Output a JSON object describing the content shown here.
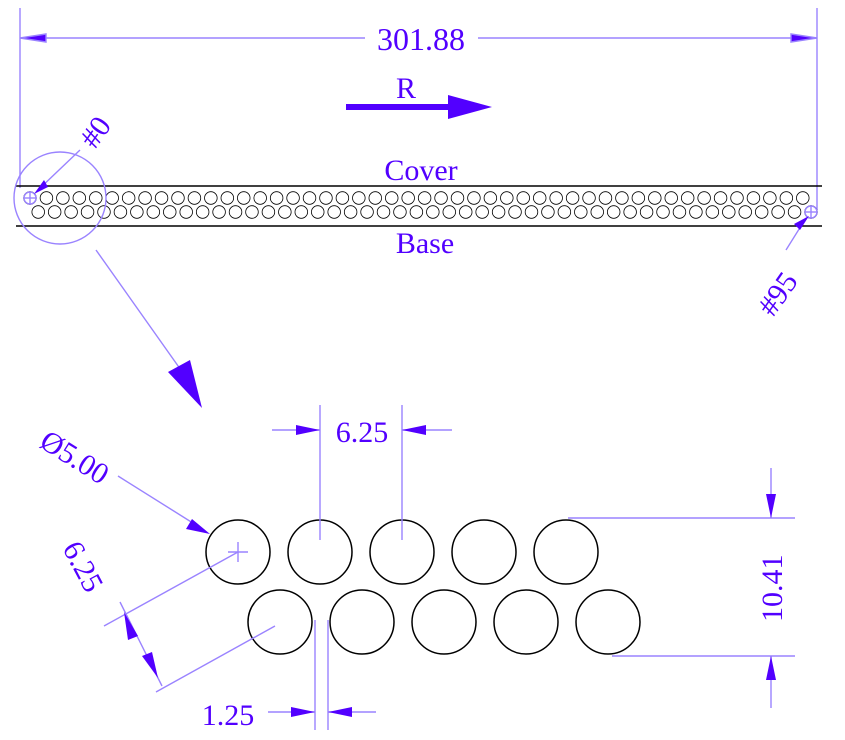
{
  "colors": {
    "accent": "#5200ff",
    "dim_line": "#9a83ff",
    "part": "#000000",
    "background": "#ffffff"
  },
  "labels": {
    "overall_length": "301.88",
    "direction": "R",
    "cover": "Cover",
    "base": "Base",
    "first_hole": "#0",
    "last_hole": "#95"
  },
  "detail": {
    "diameter": "Ø5.00",
    "horizontal_pitch": "6.25",
    "diagonal_pitch": "6.25",
    "row_offset": "1.25",
    "overall_height": "10.41"
  },
  "strip": {
    "hole_count": 96,
    "holes_per_row": 48
  },
  "icons": {
    "direction_arrow": "right-arrow-icon",
    "center_mark": "crosshair-icon"
  }
}
